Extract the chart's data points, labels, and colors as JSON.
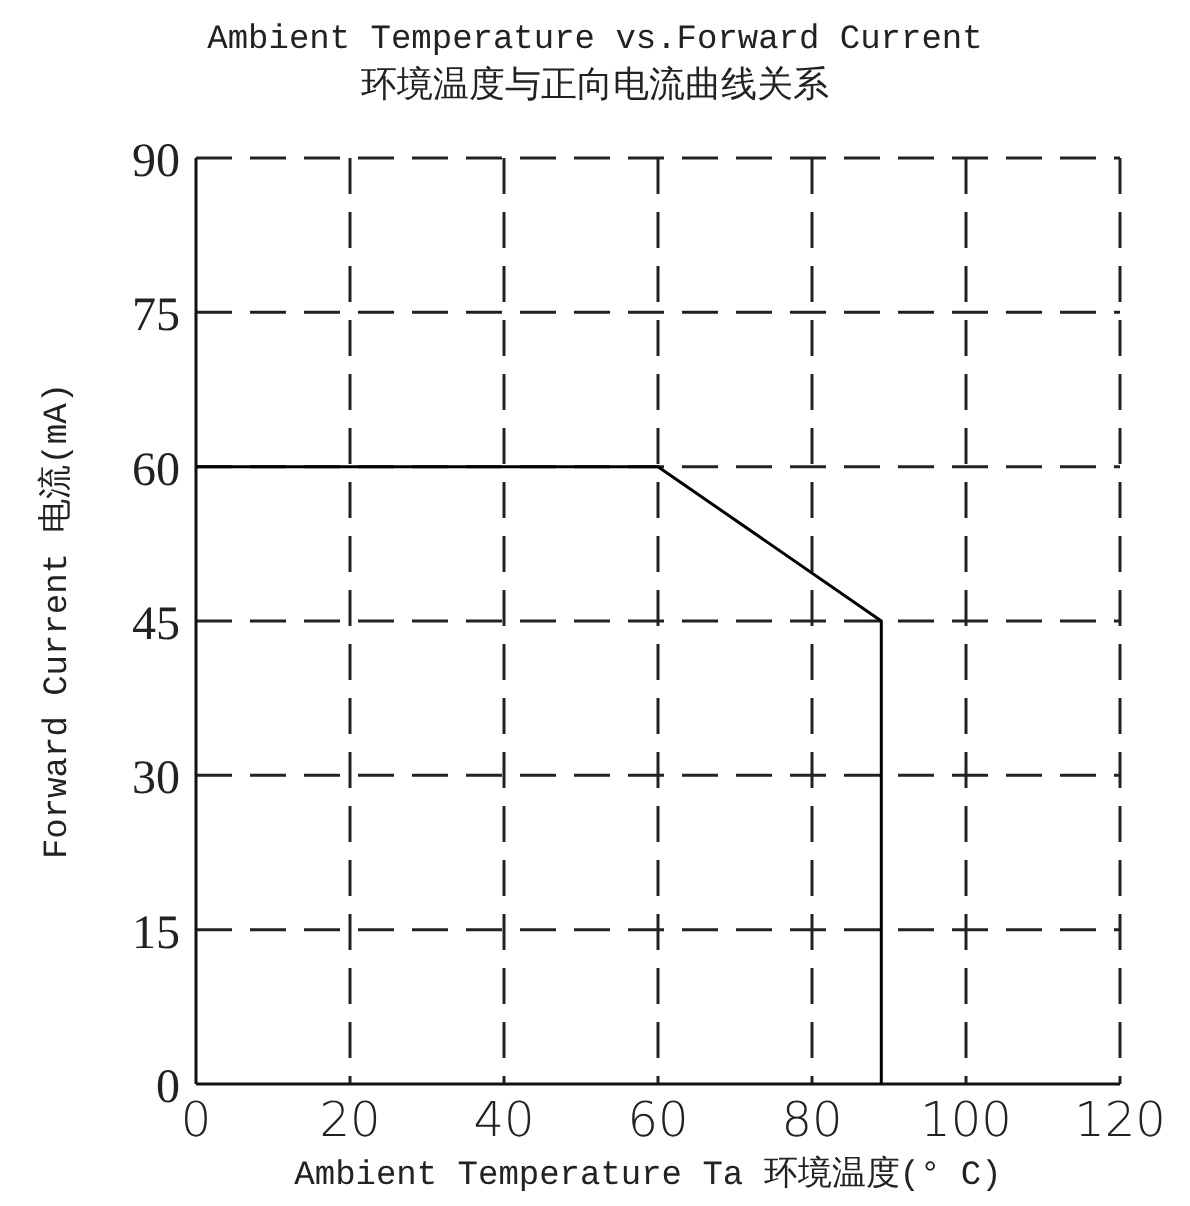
{
  "chart_data": {
    "type": "line",
    "title": "Ambient Temperature vs.Forward Current",
    "subtitle": "环境温度与正向电流曲线关系",
    "xlabel": "Ambient Temperature Ta 环境温度(° C)",
    "ylabel": "Forward Current 电流(mA)",
    "x": [
      0,
      60,
      89,
      89
    ],
    "series": [
      {
        "color": "#000000",
        "values": [
          60,
          60,
          45,
          0
        ]
      }
    ],
    "xlim": [
      0,
      120
    ],
    "xticks": [
      0,
      20,
      40,
      60,
      80,
      100,
      120
    ],
    "ylim": [
      0,
      90
    ],
    "yticks": [
      0,
      15,
      30,
      45,
      60,
      75,
      90
    ],
    "grid": true,
    "marker": "none",
    "line_style": "solid"
  }
}
